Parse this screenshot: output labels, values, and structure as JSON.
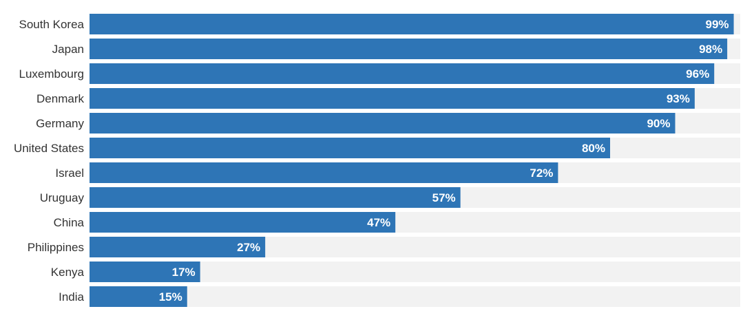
{
  "chart_data": {
    "type": "bar",
    "orientation": "horizontal",
    "categories": [
      "South Korea",
      "Japan",
      "Luxembourg",
      "Denmark",
      "Germany",
      "United States",
      "Israel",
      "Uruguay",
      "China",
      "Philippines",
      "Kenya",
      "India"
    ],
    "values": [
      99,
      98,
      96,
      93,
      90,
      80,
      72,
      57,
      47,
      27,
      17,
      15
    ],
    "value_labels": [
      "99%",
      "98%",
      "96%",
      "93%",
      "90%",
      "80%",
      "72%",
      "57%",
      "47%",
      "27%",
      "17%",
      "15%"
    ],
    "xlim": [
      0,
      100
    ],
    "title": "",
    "xlabel": "",
    "ylabel": "",
    "grid": false,
    "legend": "none",
    "colors": {
      "bar": "#2e75b6",
      "track": "#f2f2f2",
      "category_text": "#333333",
      "value_text": "#ffffff"
    }
  }
}
